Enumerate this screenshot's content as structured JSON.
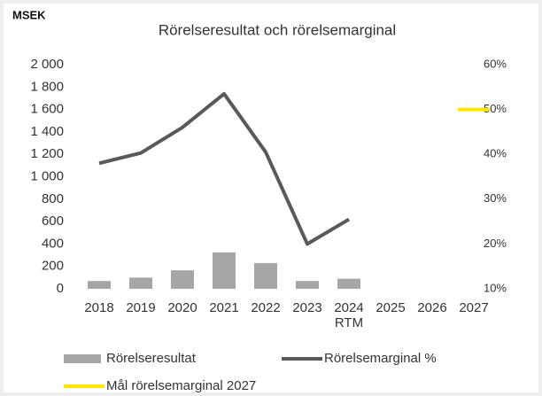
{
  "chart_data": {
    "type": "bar-line",
    "title": "Rörelseresultat och rörelsemarginal",
    "y_label": "MSEK",
    "categories": [
      "2018",
      "2019",
      "2020",
      "2021",
      "2022",
      "2023",
      "2024\nRTM",
      "2025",
      "2026",
      "2027"
    ],
    "series": [
      {
        "name": "Rörelseresultat",
        "type": "bar",
        "color": "#a6a6a6",
        "values": [
          70,
          100,
          165,
          325,
          230,
          70,
          90,
          null,
          null,
          null
        ]
      },
      {
        "name": "Rörelsemarginal %",
        "type": "line",
        "axis": "y2",
        "color": "#595959",
        "values": [
          38,
          40.3,
          46,
          53.5,
          40.5,
          20,
          25.5,
          null,
          null,
          null
        ]
      },
      {
        "name": "Mål rörelsemarginal 2027",
        "type": "marker",
        "axis": "y2",
        "color": "#ffe600",
        "values": [
          null,
          null,
          null,
          null,
          null,
          null,
          null,
          null,
          null,
          50
        ]
      }
    ],
    "ylim": [
      0,
      2000
    ],
    "yticks": [
      {
        "value": 0,
        "label": "0"
      },
      {
        "value": 200,
        "label": "200"
      },
      {
        "value": 400,
        "label": "400"
      },
      {
        "value": 600,
        "label": "600"
      },
      {
        "value": 800,
        "label": "800"
      },
      {
        "value": 1000,
        "label": "1 000"
      },
      {
        "value": 1200,
        "label": "1 200"
      },
      {
        "value": 1400,
        "label": "1 400"
      },
      {
        "value": 1600,
        "label": "1 600"
      },
      {
        "value": 1800,
        "label": "1 800"
      },
      {
        "value": 2000,
        "label": "2 000"
      }
    ],
    "y2lim": [
      10,
      60
    ],
    "y2ticks": [
      {
        "value": 10,
        "label": "10%"
      },
      {
        "value": 20,
        "label": "20%"
      },
      {
        "value": 30,
        "label": "30%"
      },
      {
        "value": 40,
        "label": "40%"
      },
      {
        "value": 50,
        "label": "50%"
      },
      {
        "value": 60,
        "label": "60%"
      }
    ]
  }
}
